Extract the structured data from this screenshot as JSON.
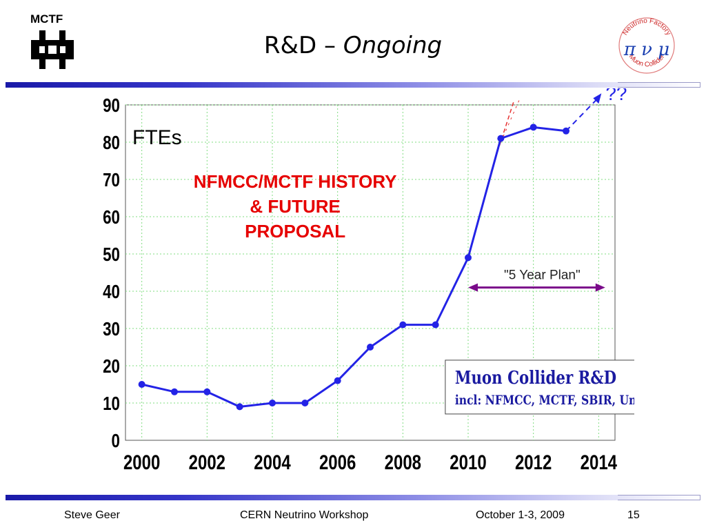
{
  "header": {
    "org_label": "MCTF",
    "title_main": "R&D – ",
    "title_italic": "Ongoing",
    "logo_right": {
      "ring_top": "Neutrino Factory",
      "ring_bottom": "Muon Collider",
      "symbols": "π ν μ"
    }
  },
  "chart_data": {
    "type": "line",
    "title": "FTEs",
    "x": [
      2000,
      2001,
      2002,
      2003,
      2004,
      2005,
      2006,
      2007,
      2008,
      2009,
      2010,
      2011,
      2012,
      2013
    ],
    "series": [
      {
        "values": [
          15,
          13,
          13,
          9,
          10,
          10,
          16,
          25,
          31,
          31,
          49,
          81,
          84,
          83
        ]
      }
    ],
    "xticks": [
      2000,
      2002,
      2004,
      2006,
      2008,
      2010,
      2012,
      2014
    ],
    "yticks": [
      0,
      10,
      20,
      30,
      40,
      50,
      60,
      70,
      80,
      90
    ],
    "xlim": [
      1999.5,
      2014.5
    ],
    "ylim": [
      0,
      90
    ],
    "grid": true,
    "future_projection": {
      "from": [
        2013,
        83
      ],
      "to": [
        2014,
        92
      ],
      "label": "??"
    },
    "annotations": {
      "history_label_lines": [
        "NFMCC/MCTF HISTORY",
        "& FUTURE",
        "PROPOSAL"
      ],
      "plan_label": "\"5 Year Plan\"",
      "plan_range": [
        2010,
        2014.2
      ],
      "plan_y": 41,
      "box_title": "Muon Collider R&D",
      "box_subtitle": "incl: NFMCC, MCTF, SBIR, Univ"
    },
    "colors": {
      "series": "#2323e6",
      "history_text": "#e60000",
      "plan_arrow": "#7a0a8a",
      "box_text": "#1a1aa0",
      "grid": "#7fdc7f",
      "projection": "#2323e6",
      "trend_red": "#e63030"
    }
  },
  "footer": {
    "author": "Steve Geer",
    "event": "CERN Neutrino Workshop",
    "date": "October 1-3, 2009",
    "page": "15"
  }
}
